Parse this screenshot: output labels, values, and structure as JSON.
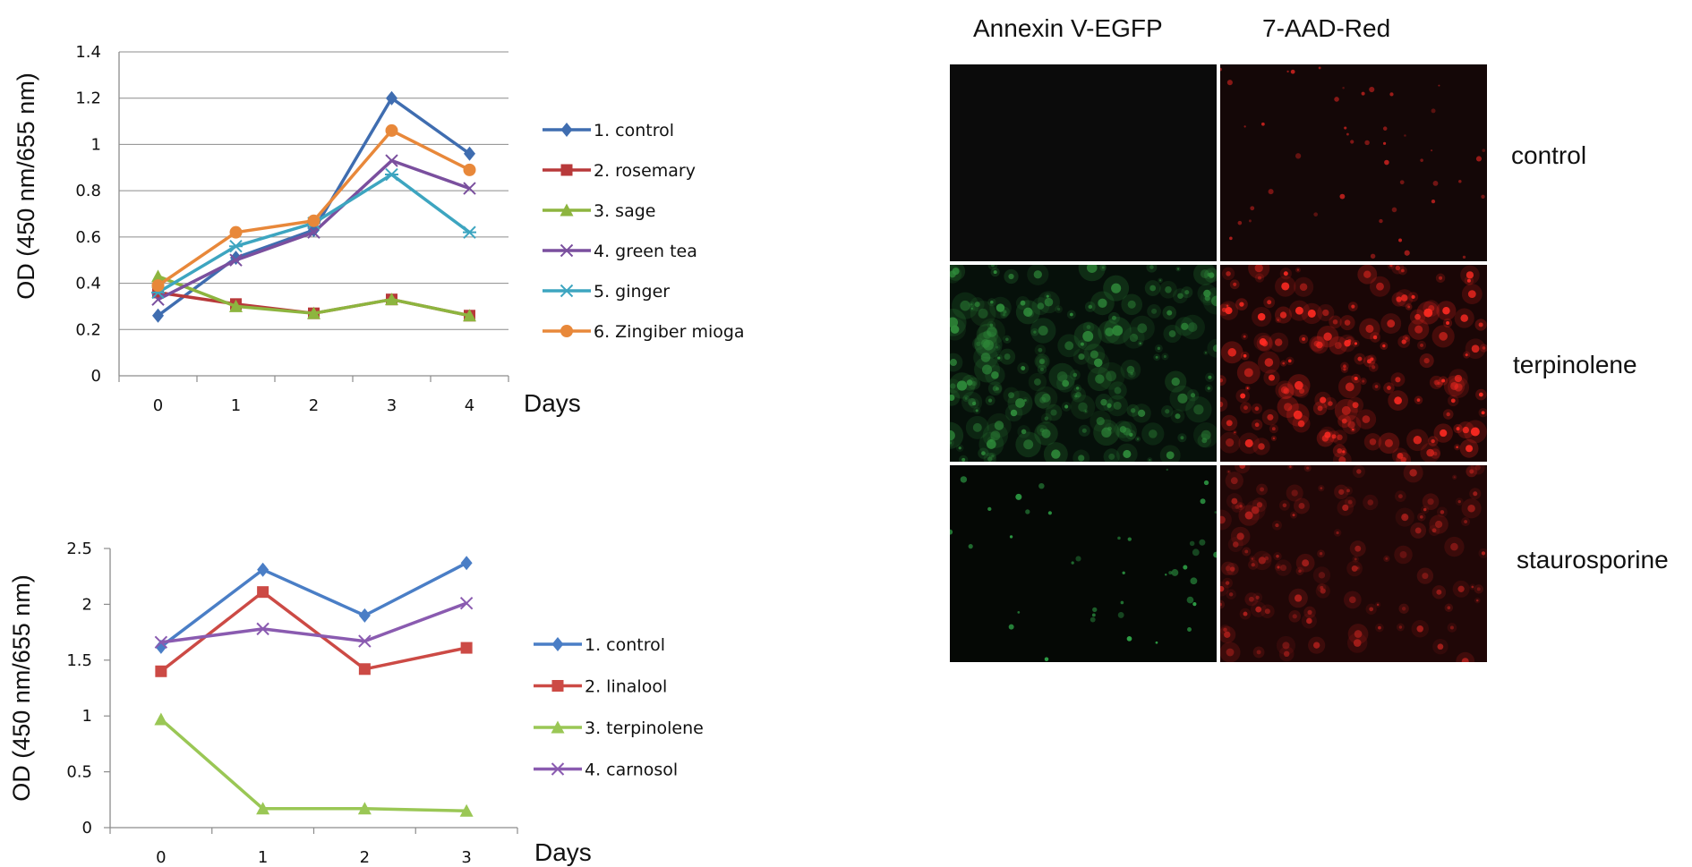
{
  "chart_data": [
    {
      "type": "line",
      "ylabel": "OD (450 nm/655 nm)",
      "xlabel": "Days",
      "x": [
        0,
        1,
        2,
        3,
        4
      ],
      "yticks": [
        "0",
        "0.2",
        "0.4",
        "0.6",
        "0.8",
        "1",
        "1.2",
        "1.4"
      ],
      "ylim": [
        0,
        1.4
      ],
      "grid": true,
      "legend_position": "right",
      "series": [
        {
          "name": "1. control",
          "color": "#3F6DB0",
          "marker": "diamond",
          "values": [
            0.26,
            0.51,
            0.63,
            1.2,
            0.96
          ]
        },
        {
          "name": "2. rosemary",
          "color": "#B8393A",
          "marker": "square",
          "values": [
            0.36,
            0.31,
            0.27,
            0.33,
            0.26
          ]
        },
        {
          "name": "3. sage",
          "color": "#8DB53F",
          "marker": "triangle",
          "values": [
            0.43,
            0.3,
            0.27,
            0.33,
            0.26
          ]
        },
        {
          "name": "4. green tea",
          "color": "#7A4F9E",
          "marker": "x",
          "values": [
            0.33,
            0.5,
            0.62,
            0.93,
            0.81
          ]
        },
        {
          "name": "5. ginger",
          "color": "#3DA5C0",
          "marker": "star",
          "values": [
            0.36,
            0.56,
            0.66,
            0.87,
            0.62
          ]
        },
        {
          "name": "6. Zingiber mioga",
          "color": "#E8883A",
          "marker": "circle",
          "values": [
            0.39,
            0.62,
            0.67,
            1.06,
            0.89
          ]
        }
      ]
    },
    {
      "type": "line",
      "ylabel": "OD (450 nm/655 nm)",
      "xlabel": "Days",
      "x": [
        0,
        1,
        2,
        3
      ],
      "yticks": [
        "0",
        "0.5",
        "1",
        "1.5",
        "2",
        "2.5"
      ],
      "ylim": [
        0,
        2.5
      ],
      "grid": false,
      "legend_position": "right",
      "series": [
        {
          "name": "1. control",
          "color": "#4A7EC6",
          "marker": "diamond",
          "values": [
            1.62,
            2.31,
            1.9,
            2.37
          ]
        },
        {
          "name": "2. linalool",
          "color": "#CC4A45",
          "marker": "square",
          "values": [
            1.4,
            2.11,
            1.42,
            1.61
          ]
        },
        {
          "name": "3. terpinolene",
          "color": "#9AC755",
          "marker": "triangle",
          "values": [
            0.97,
            0.17,
            0.17,
            0.15
          ]
        },
        {
          "name": "4. carnosol",
          "color": "#8A5BB0",
          "marker": "x",
          "values": [
            1.66,
            1.78,
            1.67,
            2.01
          ]
        }
      ]
    }
  ],
  "micrographs": {
    "columns": [
      "Annexin V-EGFP",
      "7-AAD-Red"
    ],
    "rows": [
      "control",
      "terpinolene",
      "staurosporine"
    ]
  }
}
